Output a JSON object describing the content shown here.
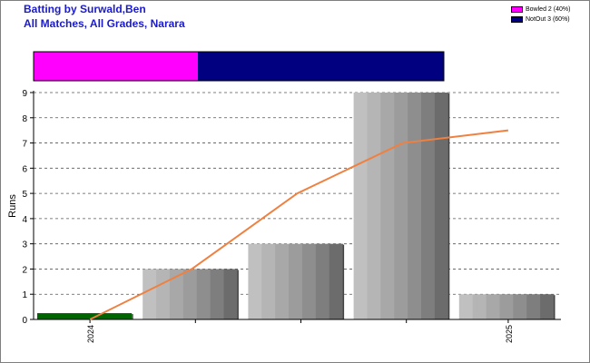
{
  "header": {
    "title": "Batting by Surwald,Ben",
    "subtitle": "All Matches, All Grades, Narara"
  },
  "legend": {
    "items": [
      {
        "label": "Bowled 2 (40%)",
        "color": "#ff00ff"
      },
      {
        "label": "NotOut 3 (60%)",
        "color": "#000080"
      }
    ]
  },
  "chart_data": [
    {
      "type": "bar",
      "orientation": "horizontal-stacked",
      "segments": [
        {
          "name": "Bowled",
          "value": 2,
          "percent": 40,
          "color": "#ff00ff"
        },
        {
          "name": "NotOut",
          "value": 3,
          "percent": 60,
          "color": "#000080"
        }
      ]
    },
    {
      "type": "bar",
      "ylabel": "Runs",
      "ylim": [
        0,
        9
      ],
      "yticks": [
        0,
        1,
        2,
        3,
        4,
        5,
        6,
        7,
        8,
        9
      ],
      "grid": true,
      "x_tick_labels": [
        "2024",
        "",
        "",
        "",
        "2025"
      ],
      "values": [
        0.25,
        2,
        3,
        9,
        1
      ],
      "bar_colors": [
        "#006400",
        "#a9a9a9",
        "#a9a9a9",
        "#a9a9a9",
        "#a9a9a9"
      ],
      "line": {
        "values": [
          0,
          2,
          5,
          7,
          7.5
        ],
        "color": "#f08040"
      }
    }
  ]
}
